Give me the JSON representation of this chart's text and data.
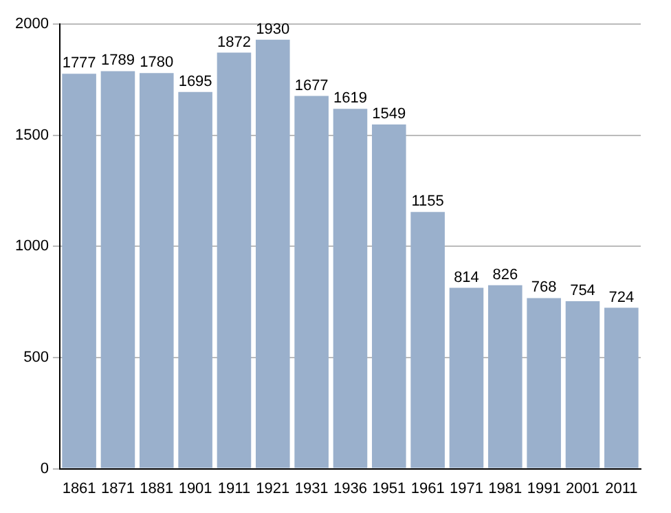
{
  "chart_data": {
    "type": "bar",
    "categories": [
      "1861",
      "1871",
      "1881",
      "1901",
      "1911",
      "1921",
      "1931",
      "1936",
      "1951",
      "1961",
      "1971",
      "1981",
      "1991",
      "2001",
      "2011"
    ],
    "values": [
      1777,
      1789,
      1780,
      1695,
      1872,
      1930,
      1677,
      1619,
      1549,
      1155,
      814,
      826,
      768,
      754,
      724
    ],
    "color": "#9ab0cc",
    "ylim": [
      0,
      2000
    ],
    "yticks": [
      0,
      500,
      1000,
      1500,
      2000
    ],
    "grid": "y",
    "data_labels": true
  }
}
